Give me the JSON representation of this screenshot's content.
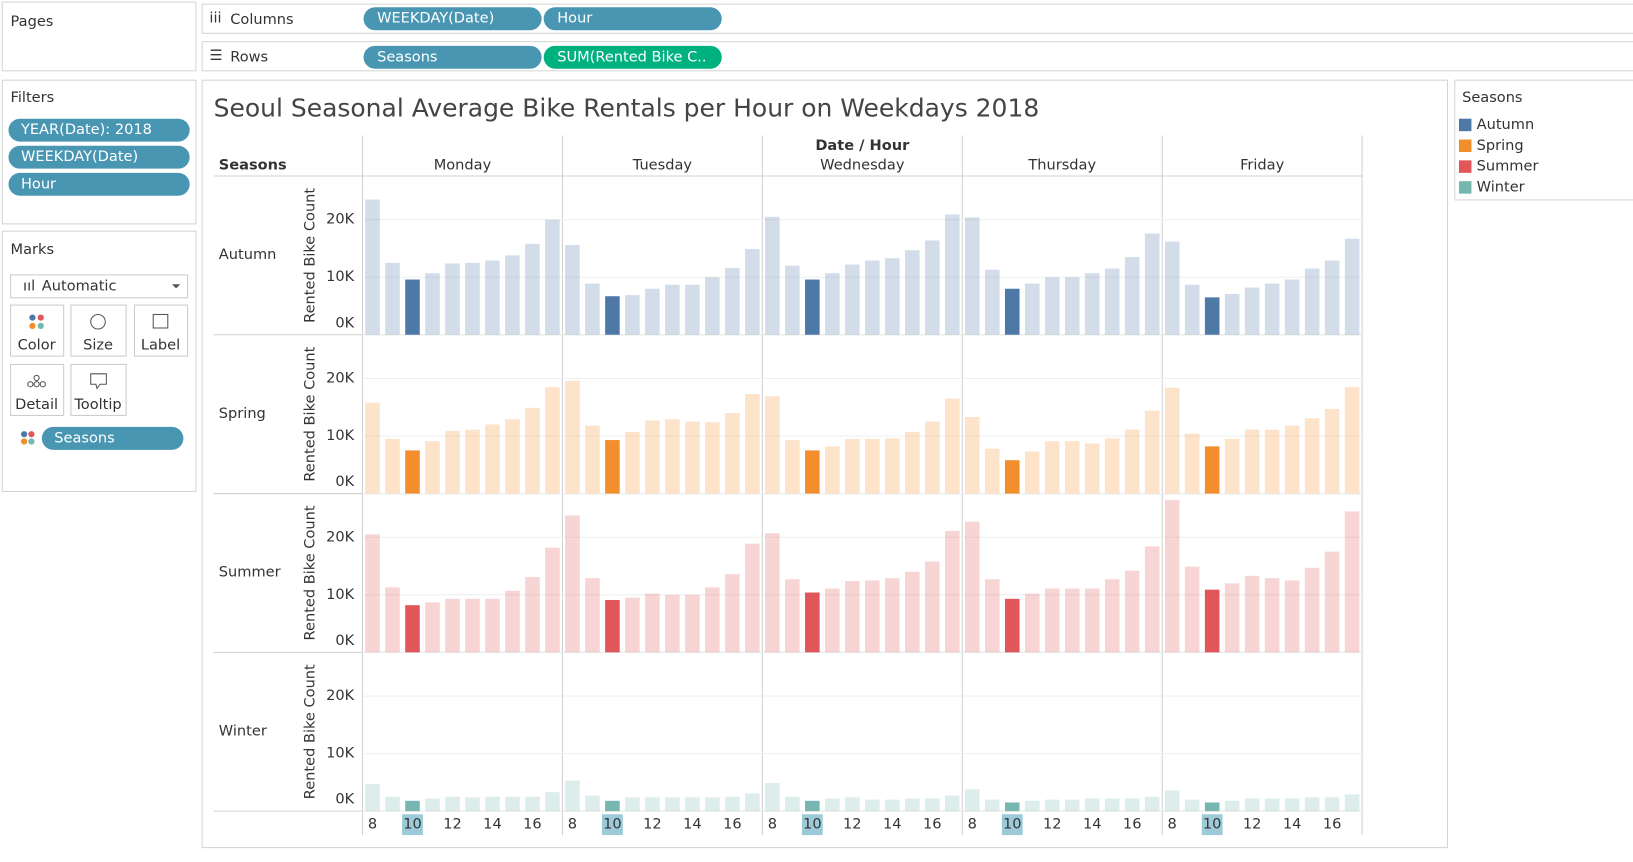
{
  "ui": {
    "pages": "Pages",
    "columns": {
      "label": "Columns",
      "pills": [
        "WEEKDAY(Date)",
        "Hour"
      ]
    },
    "rows": {
      "label": "Rows",
      "pills": [
        "Seasons",
        "SUM(Rented Bike C.."
      ]
    },
    "filters": {
      "title": "Filters",
      "pills": [
        "YEAR(Date): 2018",
        "WEEKDAY(Date)",
        "Hour"
      ]
    },
    "marks": {
      "title": "Marks",
      "mark_type": "Automatic",
      "buttons": [
        "Color",
        "Size",
        "Label",
        "Detail",
        "Tooltip"
      ],
      "pill": "Seasons"
    },
    "legend_title": "Seasons"
  },
  "chart_data": {
    "type": "bar",
    "title": "Seoul Seasonal Average Bike Rentals per Hour on Weekdays 2018",
    "x_label": "Date / Hour",
    "row_header": "Seasons",
    "y_label": "Rented Bike Count",
    "columns": [
      "Monday",
      "Tuesday",
      "Wednesday",
      "Thursday",
      "Friday"
    ],
    "categories": [
      8,
      null,
      10,
      null,
      12,
      null,
      14,
      null,
      16,
      null
    ],
    "highlight": 10,
    "ylim": [
      0,
      27600
    ],
    "yticks": [
      {
        "value": 0,
        "label": "0K"
      },
      {
        "value": 10000,
        "label": "10K"
      },
      {
        "value": 20000,
        "label": "20K"
      }
    ],
    "grid": true,
    "series": [
      {
        "name": "Autumn",
        "color": "#4e79a7",
        "values": [
          [
            23500,
            12500,
            9600,
            10700,
            12400,
            12500,
            12900,
            13800,
            15800,
            20000
          ],
          [
            15600,
            8900,
            6700,
            6900,
            8000,
            8700,
            8700,
            10000,
            11600,
            14900
          ],
          [
            20500,
            12000,
            9600,
            10700,
            12200,
            12900,
            13300,
            14700,
            16400,
            20900
          ],
          [
            20400,
            11300,
            8000,
            8900,
            10000,
            10000,
            10700,
            11500,
            13500,
            17600
          ],
          [
            16200,
            8700,
            6500,
            7100,
            8200,
            8900,
            9600,
            11500,
            12900,
            16700
          ]
        ]
      },
      {
        "name": "Spring",
        "color": "#f28e2b",
        "values": [
          [
            15800,
            9500,
            7500,
            9100,
            10900,
            11100,
            12000,
            12900,
            14900,
            18500
          ],
          [
            19600,
            11800,
            9300,
            10700,
            12700,
            12900,
            12500,
            12400,
            14000,
            17300
          ],
          [
            16900,
            9300,
            7500,
            8200,
            9500,
            9500,
            9600,
            10700,
            12500,
            16500
          ],
          [
            13300,
            7800,
            5800,
            7300,
            9100,
            9100,
            8700,
            9600,
            11100,
            14400
          ],
          [
            18400,
            10400,
            8200,
            9500,
            11100,
            11100,
            11800,
            13100,
            14700,
            18500
          ]
        ]
      },
      {
        "name": "Summer",
        "color": "#e15759",
        "values": [
          [
            20500,
            11300,
            8200,
            8700,
            9300,
            9300,
            9300,
            10700,
            13100,
            18200
          ],
          [
            23800,
            12900,
            9100,
            9500,
            10200,
            10000,
            10000,
            11300,
            13600,
            18900
          ],
          [
            20700,
            12700,
            10400,
            11100,
            12400,
            12500,
            12900,
            14000,
            15800,
            21100
          ],
          [
            22700,
            12700,
            9300,
            10200,
            11100,
            11100,
            11100,
            12700,
            14200,
            18400
          ],
          [
            26500,
            14900,
            10900,
            12000,
            13300,
            12900,
            12500,
            14700,
            17500,
            24500
          ]
        ]
      },
      {
        "name": "Winter",
        "color": "#76b7b2",
        "values": [
          [
            4700,
            2500,
            1800,
            2200,
            2500,
            2400,
            2500,
            2500,
            2500,
            3300
          ],
          [
            5300,
            2700,
            1800,
            2400,
            2400,
            2400,
            2400,
            2400,
            2500,
            3100
          ],
          [
            4900,
            2500,
            1800,
            2200,
            2400,
            2000,
            2000,
            2200,
            2200,
            2700
          ],
          [
            3800,
            2000,
            1500,
            1800,
            2000,
            2000,
            2200,
            2200,
            2200,
            2500
          ],
          [
            3600,
            2000,
            1500,
            1800,
            2200,
            2200,
            2200,
            2400,
            2400,
            2900
          ]
        ]
      }
    ]
  }
}
